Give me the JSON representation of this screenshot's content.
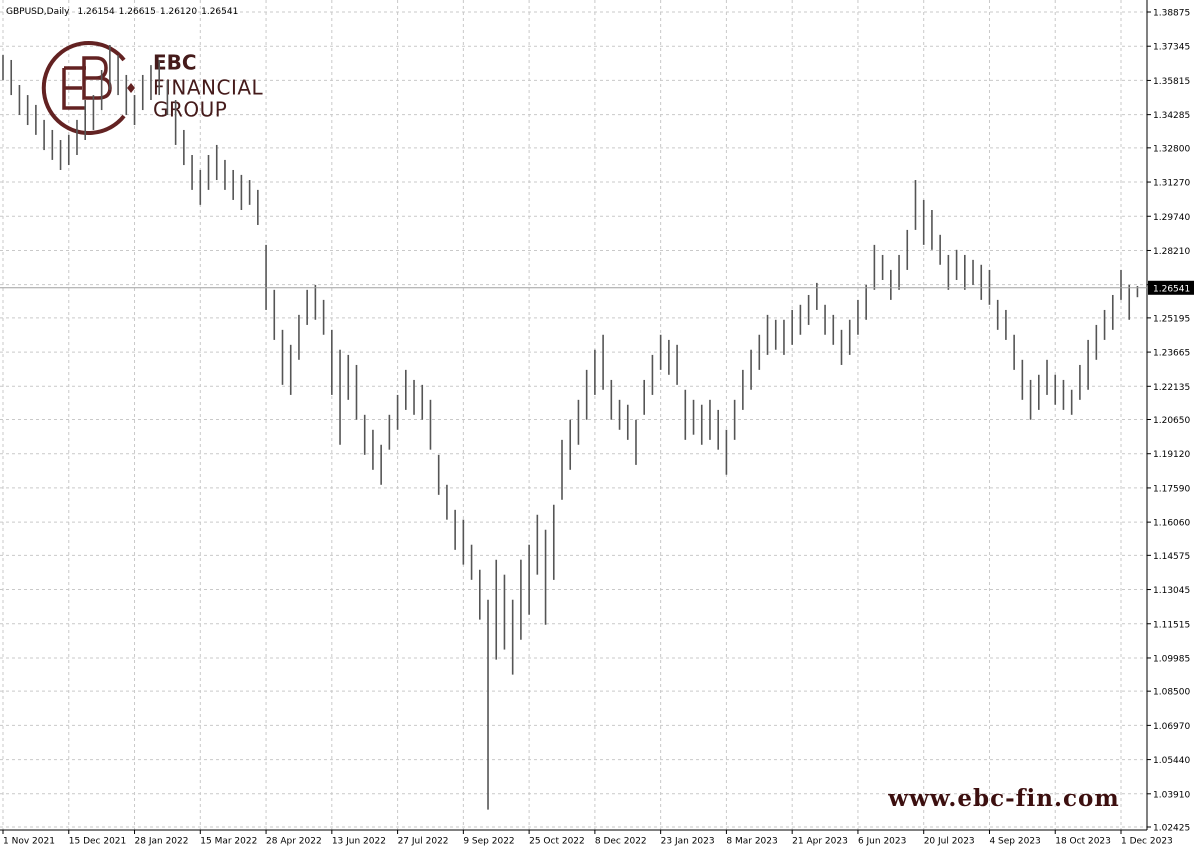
{
  "chart_data": {
    "type": "hilo",
    "header": {
      "symbol": "GBPUSD,Daily",
      "ohlc": [
        1.26154,
        1.26615,
        {
          "value": 1.2612,
          "label": "1.26120"
        },
        1.26541
      ]
    },
    "categories": [
      "1 Nov 2021",
      null,
      null,
      null,
      null,
      null,
      null,
      null,
      "15 Dec 2021",
      null,
      null,
      null,
      null,
      null,
      null,
      null,
      "28 Jan 2022",
      null,
      null,
      null,
      null,
      null,
      null,
      null,
      "15 Mar 2022",
      null,
      null,
      null,
      null,
      null,
      null,
      null,
      "28 Apr 2022",
      null,
      null,
      null,
      null,
      null,
      null,
      null,
      "13 Jun 2022",
      null,
      null,
      null,
      null,
      null,
      null,
      null,
      "27 Jul 2022",
      null,
      null,
      null,
      null,
      null,
      null,
      null,
      "9 Sep 2022",
      null,
      null,
      null,
      null,
      null,
      null,
      null,
      "25 Oct 2022",
      null,
      null,
      null,
      null,
      null,
      null,
      null,
      "8 Dec 2022",
      null,
      null,
      null,
      null,
      null,
      null,
      null,
      "23 Jan 2023",
      null,
      null,
      null,
      null,
      null,
      null,
      null,
      "8 Mar 2023",
      null,
      null,
      null,
      null,
      null,
      null,
      null,
      "21 Apr 2023",
      null,
      null,
      null,
      null,
      null,
      null,
      null,
      "6 Jun 2023",
      null,
      null,
      null,
      null,
      null,
      null,
      null,
      "20 Jul 2023",
      null,
      null,
      null,
      null,
      null,
      null,
      null,
      "4 Sep 2023",
      null,
      null,
      null,
      null,
      null,
      null,
      null,
      "18 Oct 2023",
      null,
      null,
      null,
      null,
      null,
      null,
      null,
      "1 Dec 2023",
      null,
      null
    ],
    "high": [
      1.3695,
      1.3673,
      1.3561,
      1.3516,
      1.3472,
      1.3405,
      1.336,
      1.3315,
      1.3338,
      1.3405,
      1.3494,
      1.3516,
      1.3628,
      1.374,
      1.3695,
      1.3606,
      1.3516,
      1.3606,
      1.365,
      1.3673,
      1.3583,
      1.3494,
      1.336,
      1.3248,
      1.3181,
      1.3248,
      1.3293,
      1.3226,
      1.3181,
      1.3159,
      1.3136,
      1.3092,
      1.2846,
      1.2645,
      1.2466,
      1.2399,
      1.2533,
      1.2645,
      1.2667,
      1.26,
      1.2466,
      1.2377,
      1.2354,
      1.2309,
      1.2086,
      1.2019,
      1.1952,
      1.2086,
      1.2175,
      1.2287,
      1.2242,
      1.222,
      1.2153,
      1.1907,
      1.1773,
      1.1661,
      1.1617,
      1.1505,
      1.1393,
      1.1259,
      1.1438,
      1.1371,
      1.1259,
      1.1438,
      1.1505,
      1.1639,
      1.1572,
      1.1684,
      1.1974,
      1.2064,
      1.2153,
      1.2287,
      1.2377,
      1.2444,
      1.2242,
      1.2153,
      1.2131,
      1.2064,
      1.2242,
      1.2354,
      1.2444,
      1.2421,
      1.2399,
      1.2198,
      1.2153,
      1.2131,
      1.2153,
      1.2108,
      1.2019,
      1.2153,
      1.2287,
      1.2377,
      1.2444,
      1.2533,
      1.2511,
      1.2511,
      1.2555,
      1.2578,
      1.2622,
      1.2676,
      1.2578,
      1.2533,
      1.2466,
      1.2511,
      1.26,
      1.2667,
      1.2846,
      1.2801,
      1.2734,
      1.2801,
      1.2913,
      1.3136,
      1.3047,
      1.3002,
      1.2891,
      1.2801,
      1.2824,
      1.2801,
      1.2779,
      1.2757,
      1.2734,
      1.26,
      1.2555,
      1.2444,
      1.2332,
      1.2242,
      1.2265,
      1.2332,
      1.2265,
      1.2242,
      1.2198,
      1.2309,
      1.2421,
      1.2488,
      1.2555,
      1.2622,
      1.2734,
      1.2667,
      1.2662
    ],
    "low": [
      1.3583,
      1.3516,
      1.3427,
      1.3382,
      1.3338,
      1.327,
      1.3226,
      1.3181,
      1.3203,
      1.3248,
      1.3315,
      1.336,
      1.3449,
      1.3539,
      1.3516,
      1.3427,
      1.3382,
      1.3449,
      1.3494,
      1.3516,
      1.3427,
      1.3293,
      1.3203,
      1.3092,
      1.3025,
      1.3092,
      1.3136,
      1.3092,
      1.3047,
      1.3002,
      1.3025,
      1.2935,
      1.2555,
      1.2421,
      1.222,
      1.2175,
      1.2332,
      1.2488,
      1.2511,
      1.2444,
      1.2175,
      1.1952,
      1.2153,
      1.2064,
      1.1907,
      1.184,
      1.1773,
      1.193,
      1.2019,
      1.2108,
      1.2086,
      1.2064,
      1.193,
      1.1728,
      1.1617,
      1.1482,
      1.1416,
      1.1348,
      1.117,
      1.032,
      1.0991,
      1.1036,
      1.0924,
      1.108,
      1.1192,
      1.1371,
      1.1147,
      1.1348,
      1.1706,
      1.184,
      1.1952,
      1.2064,
      1.2175,
      1.2198,
      1.2064,
      1.2019,
      1.1974,
      1.1862,
      1.2086,
      1.2175,
      1.2287,
      1.2265,
      1.222,
      1.1974,
      1.1997,
      1.1952,
      1.1974,
      1.193,
      1.1818,
      1.1974,
      1.2108,
      1.2198,
      1.2287,
      1.2354,
      1.2377,
      1.2354,
      1.2399,
      1.2444,
      1.2488,
      1.2555,
      1.2444,
      1.2399,
      1.2309,
      1.2354,
      1.2444,
      1.2511,
      1.2645,
      1.2689,
      1.26,
      1.2645,
      1.2734,
      1.2913,
      1.2846,
      1.2824,
      1.2757,
      1.2645,
      1.2689,
      1.2645,
      1.2667,
      1.26,
      1.2578,
      1.2466,
      1.2421,
      1.2287,
      1.2153,
      1.2064,
      1.2108,
      1.2175,
      1.2131,
      1.2108,
      1.2086,
      1.2153,
      1.2198,
      1.2332,
      1.2421,
      1.2466,
      1.26,
      1.2511,
      1.2612
    ],
    "color": "#555555",
    "last_price": 1.26541,
    "ylim": [
      1.02291,
      1.39412
    ],
    "yticks": [
      1.38875,
      1.37345,
      1.35815,
      1.34285,
      {
        "value": 1.328,
        "label": "1.32800"
      },
      {
        "value": 1.3127,
        "label": "1.31270"
      },
      {
        "value": 1.2974,
        "label": "1.29740"
      },
      {
        "value": 1.2821,
        "label": "1.28210"
      },
      {
        "value": 1.2668,
        "label": "1.26680"
      },
      1.25195,
      1.23665,
      1.22135,
      {
        "value": 1.2065,
        "label": "1.20650"
      },
      {
        "value": 1.1912,
        "label": "1.19120"
      },
      {
        "value": 1.1759,
        "label": "1.17590"
      },
      {
        "value": 1.1606,
        "label": "1.16060"
      },
      1.14575,
      1.13045,
      1.11515,
      1.09985,
      {
        "value": 1.085,
        "label": "1.08500"
      },
      {
        "value": 1.0697,
        "label": "1.06970"
      },
      {
        "value": 1.0544,
        "label": "1.05440"
      },
      {
        "value": 1.0391,
        "label": "1.03910"
      },
      1.02425
    ],
    "grid": true,
    "watermark": {
      "brand": "EBC",
      "line1": "FINANCIAL",
      "line2": "GROUP",
      "url": "www.ebc-fin.com"
    }
  }
}
